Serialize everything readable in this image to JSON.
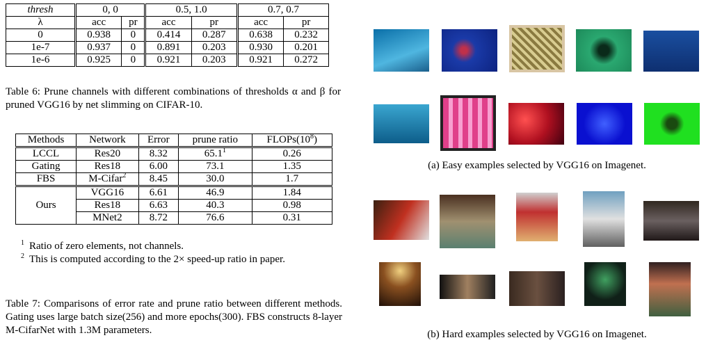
{
  "table6": {
    "header1": [
      "thresh",
      "0, 0",
      "0.5, 1.0",
      "0.7, 0.7"
    ],
    "header2": [
      "λ",
      "acc",
      "pr",
      "acc",
      "pr",
      "acc",
      "pr"
    ],
    "rows": [
      [
        "0",
        "0.938",
        "0",
        "0.414",
        "0.287",
        "0.638",
        "0.232"
      ],
      [
        "1e-7",
        "0.937",
        "0",
        "0.891",
        "0.203",
        "0.930",
        "0.201"
      ],
      [
        "1e-6",
        "0.925",
        "0",
        "0.921",
        "0.203",
        "0.921",
        "0.272"
      ]
    ],
    "caption": "Table 6: Prune channels with different combinations of thresholds α and β for pruned VGG16 by net slimming on CIFAR-10."
  },
  "table7": {
    "header": [
      "Methods",
      "Network",
      "Error",
      "prune ratio"
    ],
    "flops_header": {
      "base": "FLOPs(10",
      "exp": "8",
      "close": ")"
    },
    "rows": [
      {
        "method": "LCCL",
        "network": "Res20",
        "error": "8.32",
        "ratio": "65.1",
        "ratio_note": "1",
        "flops": "0.26"
      },
      {
        "method": "Gating",
        "network": "Res18",
        "error": "6.00",
        "ratio": "73.1",
        "flops": "1.35"
      },
      {
        "method": "FBS",
        "network": "M-Cifar",
        "network_note": "2",
        "error": "8.45",
        "ratio": "30.0",
        "flops": "1.7"
      }
    ],
    "ours": {
      "method": "Ours",
      "rows": [
        [
          "VGG16",
          "6.61",
          "46.9",
          "1.84"
        ],
        [
          "Res18",
          "6.63",
          "40.3",
          "0.98"
        ],
        [
          "MNet2",
          "8.72",
          "76.6",
          "0.31"
        ]
      ]
    },
    "footnotes": [
      {
        "mark": "1",
        "text": "Ratio of zero elements, not channels."
      },
      {
        "mark": "2",
        "text": "This is computed according to the 2× speed-up ratio in paper."
      }
    ],
    "caption": "Table 7: Comparisons of error rate and prune ratio between different methods. Gating uses large batch size(256) and more epochs(300). FBS constructs 8-layer M-CifarNet with 1.3M parameters."
  },
  "figure": {
    "caption_a": "(a) Easy examples selected by VGG16 on Imagenet.",
    "caption_b": "(b) Hard examples selected by VGG16 on Imagenet."
  }
}
